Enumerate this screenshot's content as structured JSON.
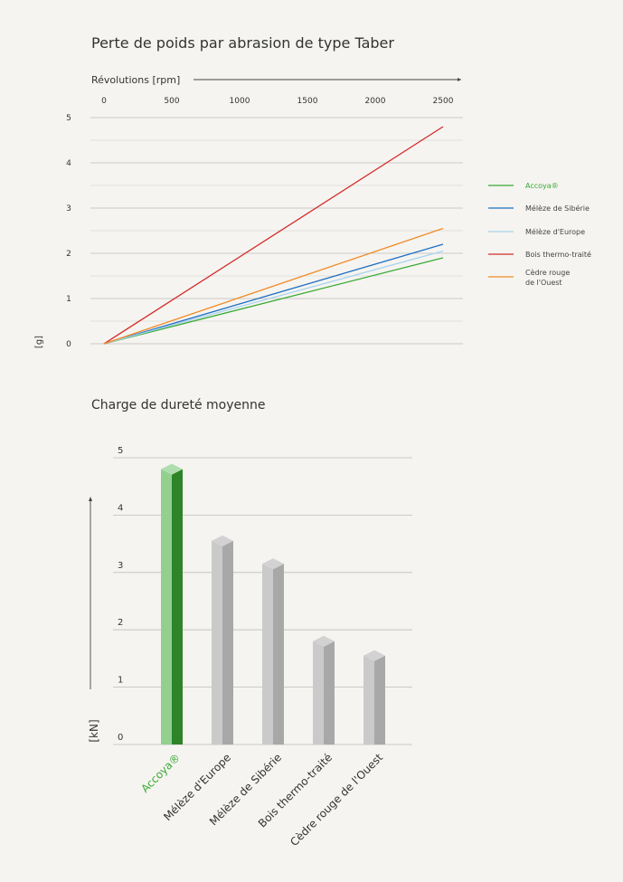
{
  "chart_data": [
    {
      "type": "line",
      "title": "Perte de poids par abrasion de type Taber",
      "xlabel": "Révolutions [rpm]",
      "ylabel": "[g]",
      "xlim": [
        0,
        2500
      ],
      "ylim": [
        0,
        5
      ],
      "x_ticks": [
        "0",
        "500",
        "1000",
        "1500",
        "2000",
        "2500"
      ],
      "y_ticks": [
        "0",
        "1",
        "2",
        "3",
        "4",
        "5"
      ],
      "legend_position": "right",
      "grid": true,
      "series": [
        {
          "name": "Accoya®",
          "color": "#3aa935",
          "legend_color": "#3aa935",
          "x": [
            0,
            2500
          ],
          "y": [
            0,
            1.9
          ]
        },
        {
          "name": "Mélèze de Sibérie",
          "color": "#1f6fc4",
          "legend_color": "#444444",
          "x": [
            0,
            2500
          ],
          "y": [
            0,
            2.2
          ]
        },
        {
          "name": "Mélèze d'Europe",
          "color": "#a9d3ef",
          "legend_color": "#444444",
          "x": [
            0,
            2500
          ],
          "y": [
            0,
            2.05
          ]
        },
        {
          "name": "Bois thermo-traité",
          "color": "#d42a2a",
          "legend_color": "#444444",
          "x": [
            0,
            2500
          ],
          "y": [
            0,
            4.8
          ]
        },
        {
          "name": "Cèdre rouge\nde l'Ouest",
          "color": "#f08a24",
          "legend_color": "#444444",
          "x": [
            0,
            2500
          ],
          "y": [
            0,
            2.55
          ]
        }
      ]
    },
    {
      "type": "bar",
      "title": "Charge de dureté moyenne",
      "ylabel": "[kN]",
      "ylim": [
        0,
        5
      ],
      "y_ticks": [
        "0",
        "1",
        "2",
        "3",
        "4",
        "5"
      ],
      "grid": true,
      "categories": [
        "Accoya®",
        "Mélèze d'Europe",
        "Mélèze de Sibérie",
        "Bois thermo-traité",
        "Cèdre rouge de l'Ouest"
      ],
      "values": [
        4.8,
        3.55,
        3.15,
        1.8,
        1.55
      ],
      "bar_colors": [
        "#3aa935",
        "#c3c3c3",
        "#c3c3c3",
        "#c3c3c3",
        "#c3c3c3"
      ],
      "label_colors": [
        "#3aa935",
        "#333333",
        "#333333",
        "#333333",
        "#333333"
      ]
    }
  ]
}
